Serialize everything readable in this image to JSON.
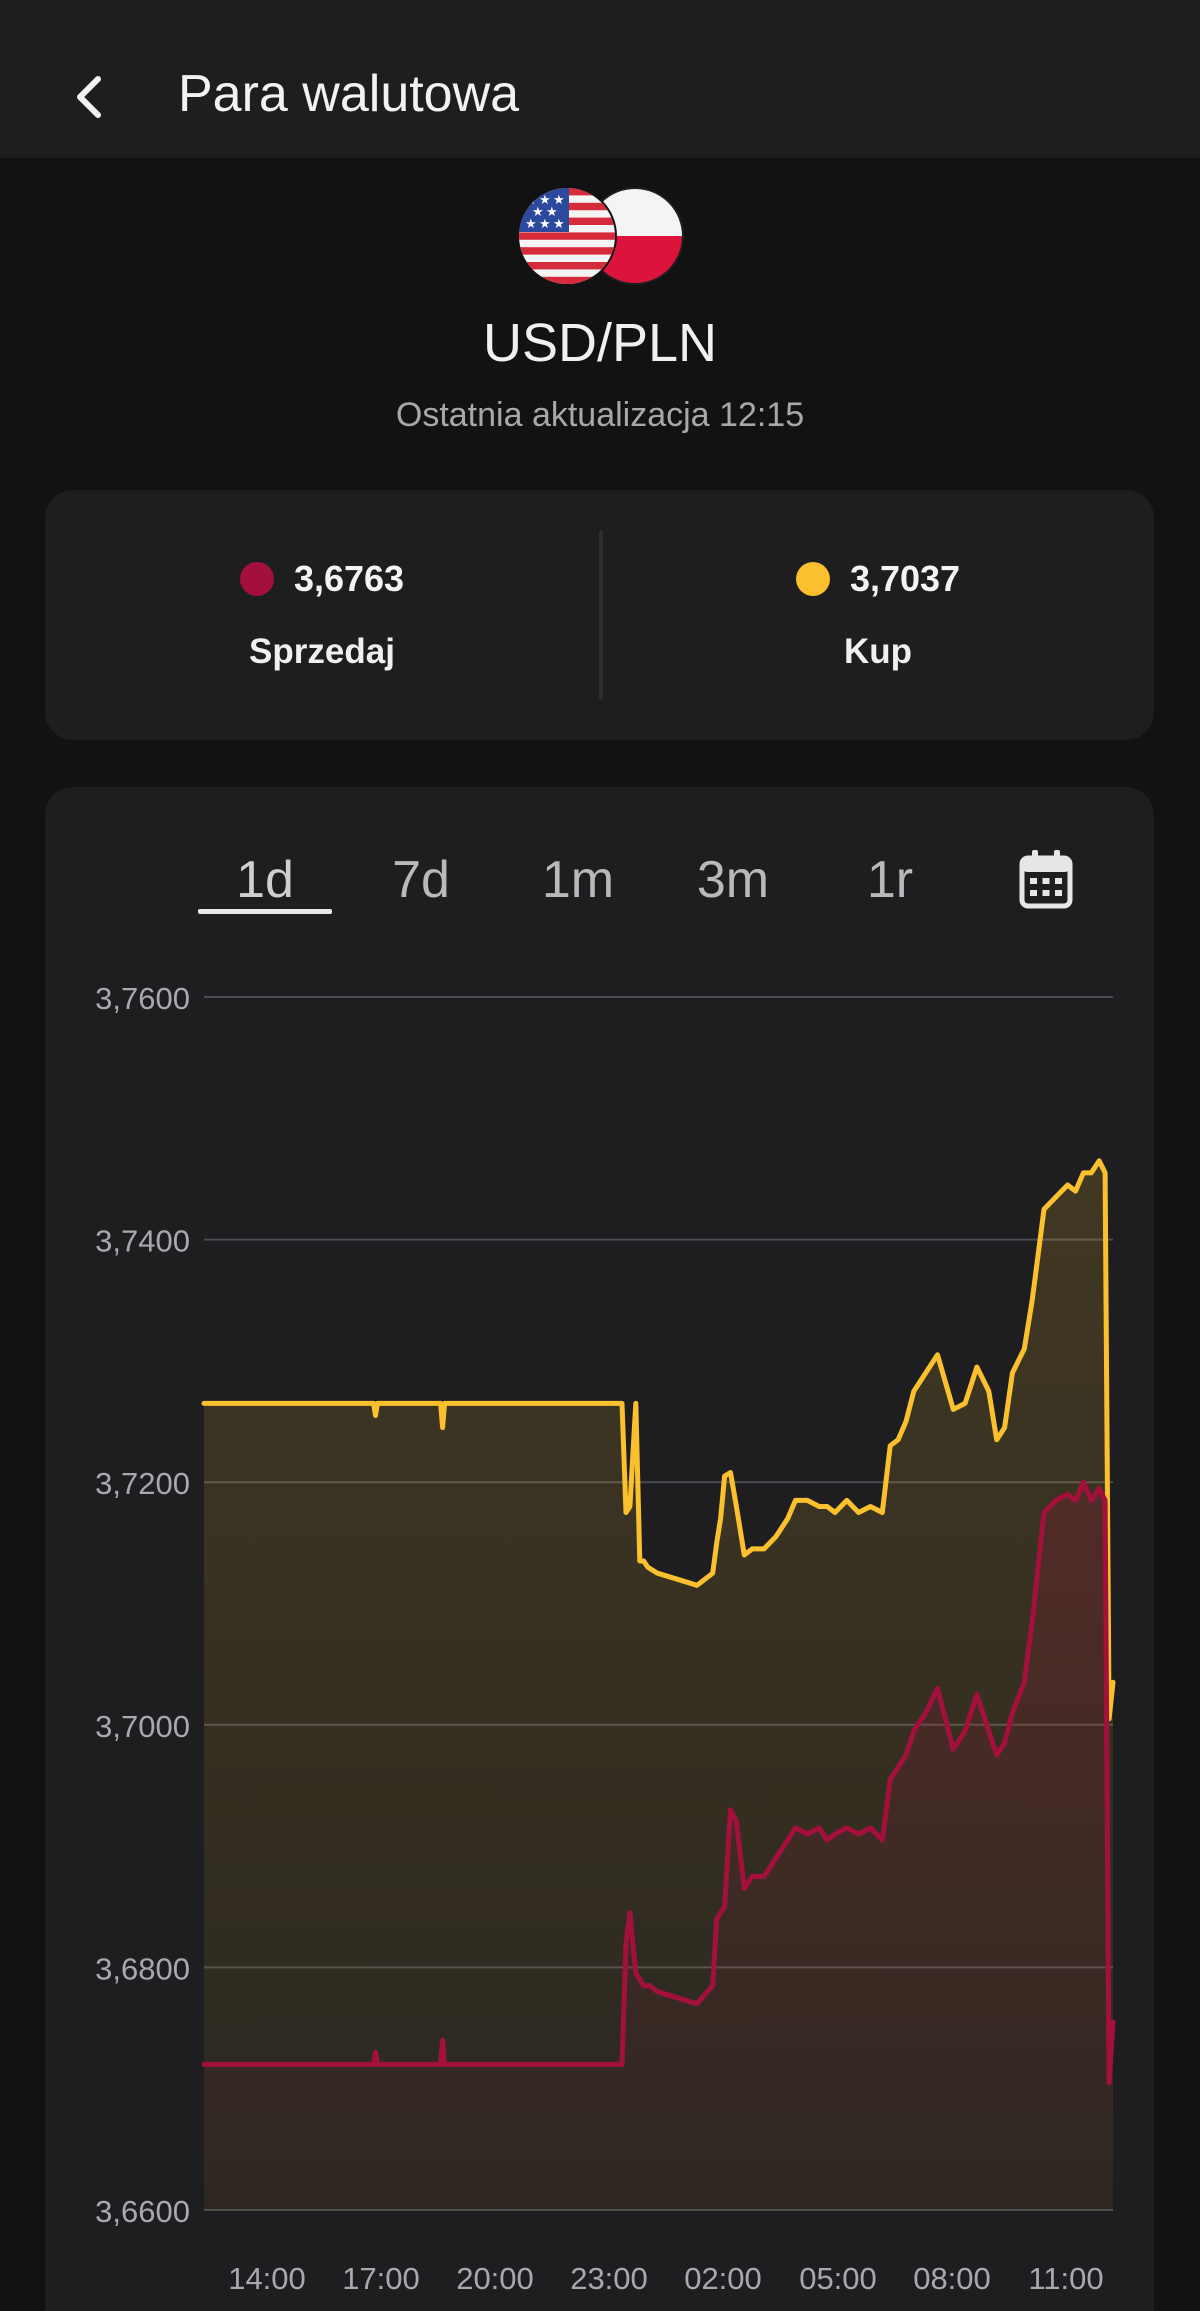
{
  "header": {
    "title": "Para walutowa",
    "back_icon": "chevron-left-icon"
  },
  "pair": {
    "name": "USD/PLN",
    "last_update": "Ostatnia aktualizacja 12:15",
    "flags": [
      "us-flag-icon",
      "pl-flag-icon"
    ]
  },
  "rates": {
    "sell": {
      "value": "3,6763",
      "label": "Sprzedaj",
      "color": "#a3103c"
    },
    "buy": {
      "value": "3,7037",
      "label": "Kup",
      "color": "#fbc02d"
    }
  },
  "tabs": [
    {
      "label": "1d",
      "active": true
    },
    {
      "label": "7d",
      "active": false
    },
    {
      "label": "1m",
      "active": false
    },
    {
      "label": "3m",
      "active": false
    },
    {
      "label": "1r",
      "active": false
    }
  ],
  "calendar_icon": "calendar-icon",
  "colors": {
    "background": "#121213",
    "card": "#1e1e20",
    "grid": "#4a4a50",
    "axis_text": "#a9a9ad"
  },
  "chart_data": {
    "type": "area",
    "x_ticks": [
      "14:00",
      "17:00",
      "20:00",
      "23:00",
      "02:00",
      "05:00",
      "08:00",
      "11:00"
    ],
    "y_ticks": [
      "3,6600",
      "3,6800",
      "3,7000",
      "3,7200",
      "3,7400",
      "3,7600"
    ],
    "ylim": [
      3.66,
      3.76
    ],
    "xlim": [
      0,
      23.05
    ],
    "grid": true,
    "series": [
      {
        "key": "buy",
        "color": "#fbc02d",
        "x": [
          0,
          4.3,
          4.35,
          4.4,
          6.0,
          6.05,
          6.1,
          10.6,
          10.7,
          10.8,
          10.95,
          11.05,
          11.15,
          11.25,
          11.5,
          12.0,
          12.5,
          12.9,
          13.0,
          13.1,
          13.2,
          13.35,
          13.5,
          13.7,
          13.9,
          14.2,
          14.5,
          14.8,
          15.0,
          15.3,
          15.6,
          15.8,
          16.0,
          16.3,
          16.6,
          16.9,
          17.2,
          17.4,
          17.6,
          17.8,
          18.0,
          18.3,
          18.6,
          19.0,
          19.3,
          19.6,
          19.9,
          20.1,
          20.3,
          20.5,
          20.8,
          21.0,
          21.3,
          21.6,
          21.9,
          22.1,
          22.3,
          22.5,
          22.7,
          22.85,
          22.95,
          23.05
        ],
        "y": [
          3.7265,
          3.7265,
          3.7255,
          3.7265,
          3.7265,
          3.7245,
          3.7265,
          3.7265,
          3.7175,
          3.718,
          3.7265,
          3.7135,
          3.7135,
          3.713,
          3.7125,
          3.712,
          3.7115,
          3.7125,
          3.715,
          3.717,
          3.7205,
          3.7208,
          3.718,
          3.714,
          3.7145,
          3.7145,
          3.7155,
          3.717,
          3.7185,
          3.7185,
          3.718,
          3.718,
          3.7175,
          3.7185,
          3.7175,
          3.718,
          3.7175,
          3.723,
          3.7235,
          3.725,
          3.7275,
          3.729,
          3.7305,
          3.726,
          3.7265,
          3.7295,
          3.7275,
          3.7235,
          3.7245,
          3.729,
          3.731,
          3.735,
          3.7425,
          3.7435,
          3.7445,
          3.744,
          3.7455,
          3.7455,
          3.7465,
          3.7455,
          3.7005,
          3.7035
        ]
      },
      {
        "key": "sell",
        "color": "#a3103c",
        "x": [
          0,
          4.3,
          4.35,
          4.4,
          6.0,
          6.05,
          6.1,
          10.6,
          10.7,
          10.8,
          10.95,
          11.05,
          11.15,
          11.3,
          11.5,
          12.0,
          12.5,
          12.9,
          13.0,
          13.1,
          13.2,
          13.35,
          13.5,
          13.7,
          13.9,
          14.2,
          14.5,
          14.8,
          15.0,
          15.3,
          15.6,
          15.8,
          16.0,
          16.3,
          16.6,
          16.9,
          17.2,
          17.4,
          17.6,
          17.8,
          18.0,
          18.3,
          18.6,
          19.0,
          19.3,
          19.6,
          19.9,
          20.1,
          20.3,
          20.5,
          20.8,
          21.0,
          21.3,
          21.6,
          21.9,
          22.1,
          22.3,
          22.5,
          22.7,
          22.85,
          22.95,
          23.05
        ],
        "y": [
          3.672,
          3.672,
          3.673,
          3.672,
          3.672,
          3.674,
          3.672,
          3.672,
          3.682,
          3.6845,
          3.6795,
          3.679,
          3.6785,
          3.6785,
          3.678,
          3.6775,
          3.677,
          3.6785,
          3.684,
          3.6845,
          3.685,
          3.693,
          3.692,
          3.6865,
          3.6875,
          3.6875,
          3.689,
          3.6905,
          3.6915,
          3.691,
          3.6915,
          3.6905,
          3.691,
          3.6915,
          3.691,
          3.6915,
          3.6905,
          3.6955,
          3.6965,
          3.6975,
          3.6995,
          3.701,
          3.703,
          3.698,
          3.6995,
          3.7025,
          3.6995,
          3.6975,
          3.6985,
          3.701,
          3.7035,
          3.7085,
          3.7175,
          3.7185,
          3.719,
          3.7185,
          3.72,
          3.7185,
          3.7195,
          3.7185,
          3.6705,
          3.6755
        ]
      }
    ]
  }
}
